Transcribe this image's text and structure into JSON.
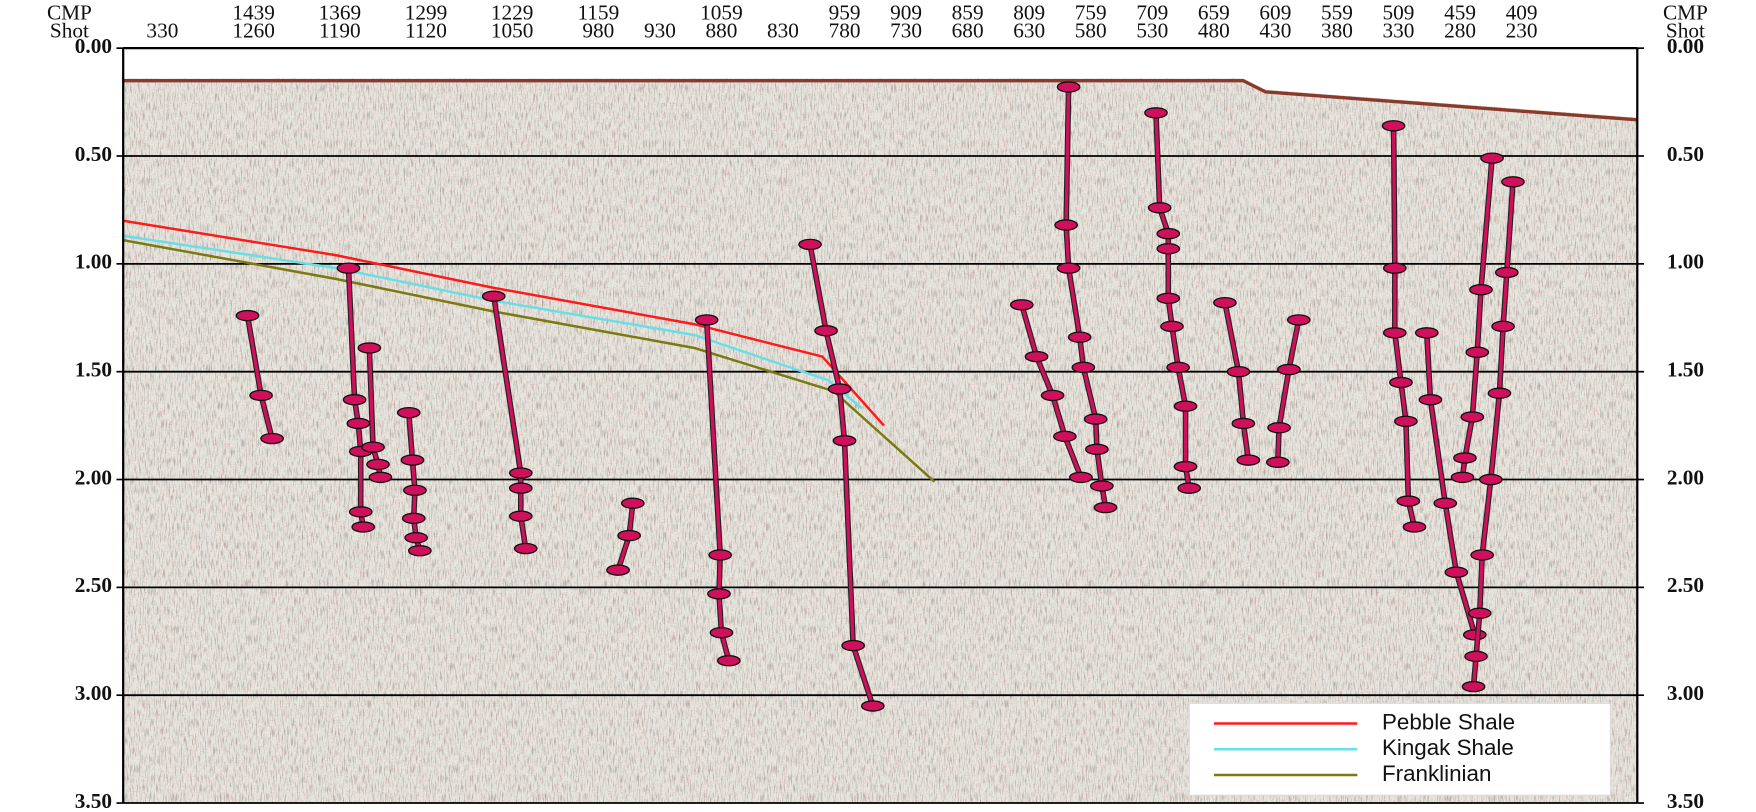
{
  "chart_data": {
    "type": "seismic",
    "x_label": "Shot",
    "x2_label": "CMP",
    "x_left_label": "330",
    "xlim": [
      1366,
      136
    ],
    "x2lim": [
      1545,
      315
    ],
    "xticks": [
      1260,
      1190,
      1120,
      1050,
      980,
      930,
      880,
      830,
      780,
      730,
      680,
      630,
      580,
      530,
      480,
      430,
      380,
      330,
      280,
      230
    ],
    "x2ticks": [
      1439,
      1369,
      1299,
      1229,
      1159,
      1059,
      959,
      909,
      859,
      809,
      759,
      709,
      659,
      609,
      559,
      509,
      459,
      409
    ],
    "ylim": [
      0,
      3.5
    ],
    "yticks": [
      {
        "value": 0,
        "label": "0.00"
      },
      {
        "value": 0.5,
        "label": "0.50"
      },
      {
        "value": 1,
        "label": "1.00"
      },
      {
        "value": 1.5,
        "label": "1.50"
      },
      {
        "value": 2,
        "label": "2.00"
      },
      {
        "value": 2.5,
        "label": "2.50"
      },
      {
        "value": 3,
        "label": "3.00"
      },
      {
        "value": 3.5,
        "label": "3.50"
      }
    ],
    "grid": true,
    "legend": "lower right",
    "series": [
      {
        "name": "Pebble Shale",
        "color": "#ff1a1a",
        "x": [
          1366,
          1193,
          1066,
          902,
          798,
          748
        ],
        "values": [
          0.8,
          0.96,
          1.11,
          1.28,
          1.43,
          1.75
        ]
      },
      {
        "name": "Kingak Shale",
        "color": "#66e0e6",
        "x": [
          1366,
          1193,
          1066,
          902,
          793,
          766
        ],
        "values": [
          0.87,
          1.02,
          1.17,
          1.33,
          1.54,
          1.67
        ]
      },
      {
        "name": "Franklinian",
        "color": "#7a7a10",
        "x": [
          1366,
          1193,
          1066,
          902,
          789,
          707
        ],
        "values": [
          0.89,
          1.07,
          1.22,
          1.39,
          1.59,
          2.01
        ]
      }
    ],
    "fault_color": "#d0105a",
    "faults": [
      {
        "x": [
          1265,
          1254,
          1245
        ],
        "values": [
          1.24,
          1.61,
          1.81
        ]
      },
      {
        "x": [
          1183,
          1178,
          1175,
          1173,
          1173,
          1171
        ],
        "values": [
          1.02,
          1.63,
          1.74,
          1.87,
          2.15,
          2.22
        ]
      },
      {
        "x": [
          1166,
          1163,
          1159,
          1157
        ],
        "values": [
          1.39,
          1.85,
          1.93,
          1.99
        ]
      },
      {
        "x": [
          1134,
          1131,
          1129,
          1130,
          1128,
          1125
        ],
        "values": [
          1.69,
          1.91,
          2.05,
          2.18,
          2.27,
          2.33
        ]
      },
      {
        "x": [
          1065,
          1043,
          1043,
          1043,
          1039
        ],
        "values": [
          1.15,
          1.97,
          2.04,
          2.17,
          2.32
        ]
      },
      {
        "x": [
          952,
          955,
          964
        ],
        "values": [
          2.11,
          2.26,
          2.42
        ]
      },
      {
        "x": [
          892,
          881,
          882,
          880,
          874
        ],
        "values": [
          1.26,
          2.35,
          2.53,
          2.71,
          2.84
        ]
      },
      {
        "x": [
          808,
          795,
          784,
          780,
          773,
          757
        ],
        "values": [
          0.91,
          1.31,
          1.58,
          1.82,
          2.77,
          3.05
        ]
      },
      {
        "x": [
          598,
          600,
          598,
          589,
          586,
          576,
          575,
          571,
          568
        ],
        "values": [
          0.18,
          0.82,
          1.02,
          1.34,
          1.48,
          1.72,
          1.86,
          2.03,
          2.13
        ]
      },
      {
        "x": [
          636,
          624,
          611,
          601,
          588
        ],
        "values": [
          1.19,
          1.43,
          1.61,
          1.8,
          1.99
        ]
      },
      {
        "x": [
          527,
          524,
          517,
          517,
          517,
          514,
          509,
          503,
          503,
          500
        ],
        "values": [
          0.3,
          0.74,
          0.86,
          0.93,
          1.16,
          1.29,
          1.48,
          1.66,
          1.94,
          2.04
        ]
      },
      {
        "x": [
          471,
          460,
          456,
          452
        ],
        "values": [
          1.18,
          1.5,
          1.74,
          1.91
        ]
      },
      {
        "x": [
          411,
          419,
          427,
          428
        ],
        "values": [
          1.26,
          1.49,
          1.76,
          1.92
        ]
      },
      {
        "x": [
          334,
          333,
          333,
          328,
          324,
          322,
          317
        ],
        "values": [
          0.36,
          1.02,
          1.32,
          1.55,
          1.73,
          2.1,
          2.22
        ]
      },
      {
        "x": [
          307,
          304,
          292,
          283,
          268
        ],
        "values": [
          1.32,
          1.63,
          2.11,
          2.43,
          2.72
        ]
      },
      {
        "x": [
          254,
          263,
          266,
          270,
          276,
          278
        ],
        "values": [
          0.51,
          1.12,
          1.41,
          1.71,
          1.9,
          1.99
        ]
      },
      {
        "x": [
          237,
          242,
          245,
          248,
          255,
          262,
          264,
          267,
          269
        ],
        "values": [
          0.62,
          1.04,
          1.29,
          1.6,
          2.0,
          2.35,
          2.62,
          2.82,
          2.96
        ]
      }
    ]
  }
}
